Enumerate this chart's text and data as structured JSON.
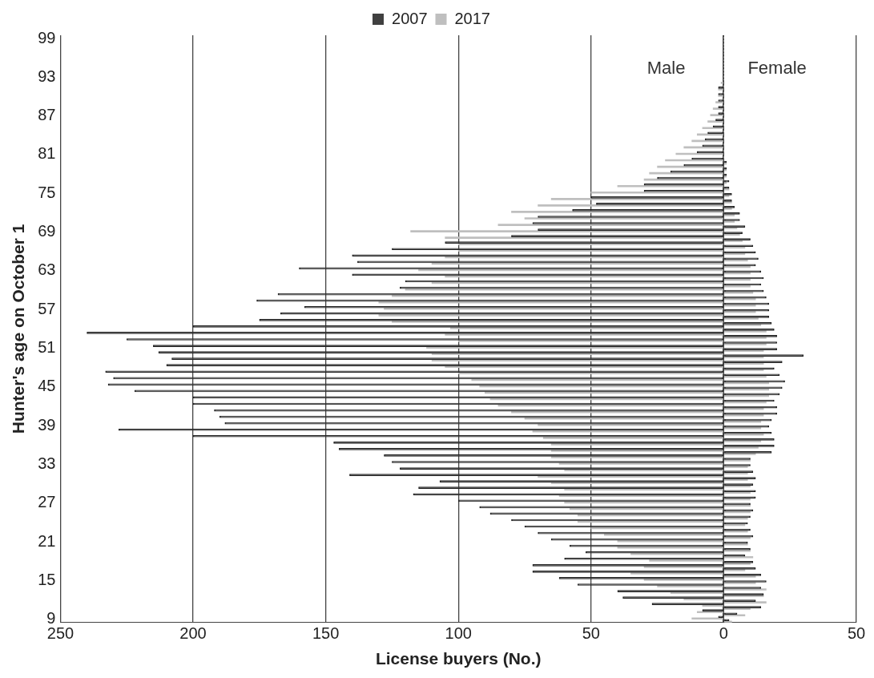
{
  "chart_data": {
    "type": "bar",
    "orientation": "horizontal",
    "xlabel": "License buyers (No.)",
    "ylabel": "Hunter's age on October 1",
    "categories": [
      "99",
      null,
      null,
      null,
      null,
      null,
      "93",
      null,
      null,
      null,
      null,
      null,
      "87",
      null,
      null,
      null,
      null,
      null,
      "81",
      null,
      null,
      null,
      null,
      null,
      "75",
      null,
      null,
      null,
      null,
      null,
      "69",
      null,
      null,
      null,
      null,
      null,
      "63",
      null,
      null,
      null,
      null,
      null,
      "57",
      null,
      null,
      null,
      null,
      null,
      "51",
      null,
      null,
      null,
      null,
      null,
      "45",
      null,
      null,
      null,
      null,
      null,
      "39",
      null,
      null,
      null,
      null,
      null,
      "33",
      null,
      null,
      null,
      null,
      null,
      "27",
      null,
      null,
      null,
      null,
      null,
      "21",
      null,
      null,
      null,
      null,
      null,
      "15",
      null,
      null,
      null,
      null,
      null,
      "9"
    ],
    "series": [
      {
        "name": "2007",
        "color": "#404040",
        "line_style": "dashed",
        "values": [
          0,
          0,
          0,
          0,
          0,
          0,
          0,
          0,
          -2,
          -2,
          -2,
          -2,
          -2,
          -3,
          -4,
          -6,
          -7,
          -8,
          -10,
          -12,
          -15,
          -20,
          -25,
          -30,
          -30,
          -50,
          -48,
          -57,
          -70,
          -72,
          -70,
          -80,
          -105,
          -125,
          -140,
          -138,
          -160,
          -140,
          -120,
          -122,
          -168,
          -176,
          -158,
          -167,
          -175,
          -200,
          -240,
          -225,
          -215,
          -213,
          -208,
          -210,
          -233,
          -230,
          -232,
          -222,
          -200,
          -200,
          -192,
          -190,
          -188,
          -228,
          -200,
          -147,
          -145,
          -128,
          -125,
          -122,
          -141,
          -107,
          -115,
          -117,
          -100,
          -92,
          -88,
          -80,
          -75,
          -70,
          -65,
          -58,
          -52,
          -60,
          -72,
          -72,
          -62,
          -55,
          -40,
          -38,
          -27,
          -8,
          -2
        ]
      },
      {
        "name": "2017",
        "color": "#bfbfbf",
        "values": [
          0,
          0,
          0,
          0,
          0,
          0,
          0,
          -1,
          -2,
          -2,
          -3,
          -4,
          -5,
          -6,
          -8,
          -10,
          -12,
          -15,
          -18,
          -22,
          -25,
          -28,
          -30,
          -40,
          -50,
          -65,
          -70,
          -80,
          -75,
          -85,
          -118,
          -105,
          -100,
          -100,
          -105,
          -110,
          -115,
          -105,
          -110,
          -120,
          -125,
          -130,
          -128,
          -130,
          -125,
          -103,
          -105,
          -100,
          -112,
          -110,
          -110,
          -105,
          -100,
          -95,
          -92,
          -90,
          -88,
          -85,
          -80,
          -75,
          -70,
          -72,
          -68,
          -65,
          -65,
          -65,
          -62,
          -60,
          -70,
          -65,
          -60,
          -62,
          -60,
          -58,
          -55,
          -55,
          -50,
          -45,
          -40,
          -40,
          -35,
          -28,
          -30,
          -35,
          -30,
          -25,
          -20,
          -15,
          -8,
          -10,
          -12
        ]
      },
      {
        "color": "#404040",
        "line_style": "dashed",
        "values": [
          0,
          0,
          0,
          0,
          0,
          0,
          0,
          0,
          0,
          0,
          0,
          0,
          0,
          0,
          0,
          0,
          0,
          0,
          0,
          1,
          1,
          1,
          2,
          2,
          3,
          3,
          4,
          6,
          6,
          8,
          7,
          10,
          11,
          12,
          13,
          12,
          14,
          15,
          14,
          15,
          16,
          17,
          17,
          17,
          18,
          19,
          20,
          20,
          20,
          30,
          22,
          19,
          21,
          23,
          22,
          21,
          19,
          20,
          20,
          18,
          17,
          18,
          19,
          19,
          18,
          10,
          10,
          11,
          12,
          11,
          12,
          12,
          10,
          11,
          10,
          9,
          10,
          11,
          9,
          10,
          8,
          11,
          12,
          14,
          16,
          14,
          15,
          12,
          14,
          5,
          2
        ]
      },
      {
        "color": "#bfbfbf",
        "values": [
          0,
          0,
          0,
          0,
          0,
          0,
          0,
          0,
          0,
          0,
          0,
          0,
          0,
          0,
          0,
          0,
          0,
          0,
          0,
          1,
          1,
          1,
          1,
          2,
          2,
          3,
          3,
          4,
          4,
          5,
          6,
          7,
          8,
          8,
          9,
          10,
          10,
          10,
          10,
          11,
          12,
          12,
          12,
          13,
          14,
          16,
          16,
          16,
          15,
          15,
          15,
          15,
          16,
          17,
          17,
          17,
          16,
          15,
          15,
          14,
          14,
          15,
          14,
          13,
          12,
          10,
          9,
          9,
          9,
          10,
          10,
          10,
          10,
          10,
          9,
          8,
          9,
          10,
          9,
          10,
          11,
          10,
          8,
          12,
          12,
          16,
          15,
          16,
          10,
          8,
          3
        ]
      }
    ],
    "xlim": [
      -250,
      50
    ],
    "xticks": [
      {
        "value": -250,
        "label": "250"
      },
      {
        "value": -200,
        "label": "200"
      },
      {
        "value": -150,
        "label": "150"
      },
      {
        "value": -100,
        "label": "100"
      },
      {
        "value": -50,
        "label": "50"
      },
      0,
      50
    ],
    "annotations": [
      "Male",
      "Female"
    ],
    "grid": "x",
    "legend": "top"
  }
}
